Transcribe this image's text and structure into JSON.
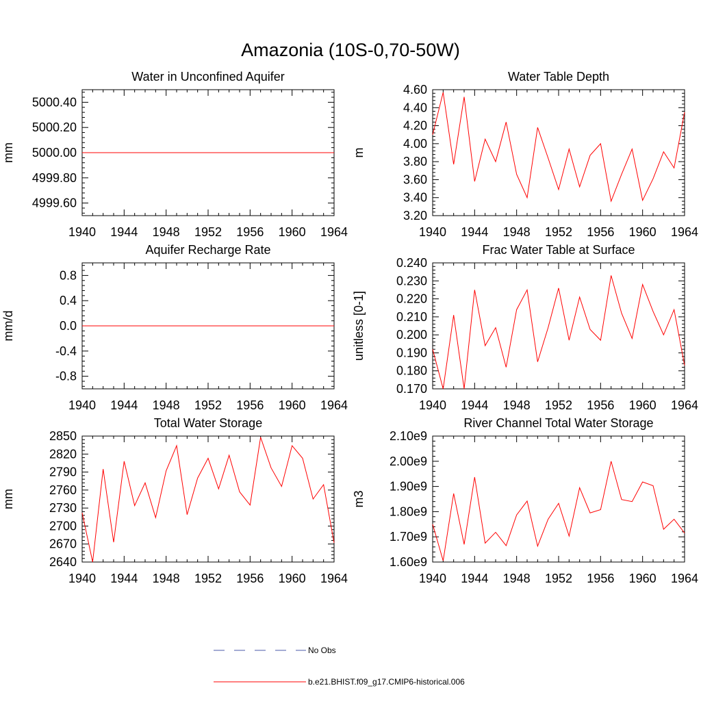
{
  "figure_title": "Amazonia (10S-0,70-50W)",
  "colors": {
    "model": "#ff0000",
    "obs": "#4a5aa8",
    "axis": "#000000"
  },
  "legend": [
    {
      "label": "No Obs",
      "style": "dashed",
      "color": "#4a5aa8"
    },
    {
      "label": "b.e21.BHIST.f09_g17.CMIP6-historical.006",
      "style": "solid",
      "color": "#ff0000"
    }
  ],
  "chart_data": [
    {
      "type": "line",
      "title": "Water in Unconfined Aquifer",
      "ylabel": "mm",
      "xlim": [
        1940,
        1964
      ],
      "ylim": [
        4999.5,
        5000.5
      ],
      "xticks": [
        "1940",
        "1944",
        "1948",
        "1952",
        "1956",
        "1960",
        "1964"
      ],
      "yticks": [
        {
          "v": 4999.6,
          "label": "4999.60"
        },
        {
          "v": 4999.8,
          "label": "4999.80"
        },
        {
          "v": 5000.0,
          "label": "5000.00"
        },
        {
          "v": 5000.2,
          "label": "5000.20"
        },
        {
          "v": 5000.4,
          "label": "5000.40"
        }
      ],
      "x": [
        1940,
        1941,
        1942,
        1943,
        1944,
        1945,
        1946,
        1947,
        1948,
        1949,
        1950,
        1951,
        1952,
        1953,
        1954,
        1955,
        1956,
        1957,
        1958,
        1959,
        1960,
        1961,
        1962,
        1963,
        1964
      ],
      "series": [
        {
          "name": "b.e21.BHIST.f09_g17.CMIP6-historical.006",
          "values": [
            5000,
            5000,
            5000,
            5000,
            5000,
            5000,
            5000,
            5000,
            5000,
            5000,
            5000,
            5000,
            5000,
            5000,
            5000,
            5000,
            5000,
            5000,
            5000,
            5000,
            5000,
            5000,
            5000,
            5000,
            5000
          ]
        }
      ]
    },
    {
      "type": "line",
      "title": "Water Table Depth",
      "ylabel": "m",
      "xlim": [
        1940,
        1964
      ],
      "ylim": [
        3.2,
        4.6
      ],
      "xticks": [
        "1940",
        "1944",
        "1948",
        "1952",
        "1956",
        "1960",
        "1964"
      ],
      "yticks": [
        {
          "v": 3.2,
          "label": "3.20"
        },
        {
          "v": 3.4,
          "label": "3.40"
        },
        {
          "v": 3.6,
          "label": "3.60"
        },
        {
          "v": 3.8,
          "label": "3.80"
        },
        {
          "v": 4.0,
          "label": "4.00"
        },
        {
          "v": 4.2,
          "label": "4.20"
        },
        {
          "v": 4.4,
          "label": "4.40"
        },
        {
          "v": 4.6,
          "label": "4.60"
        }
      ],
      "x": [
        1940,
        1941,
        1942,
        1943,
        1944,
        1945,
        1946,
        1947,
        1948,
        1949,
        1950,
        1951,
        1952,
        1953,
        1954,
        1955,
        1956,
        1957,
        1958,
        1959,
        1960,
        1961,
        1962,
        1963,
        1964
      ],
      "series": [
        {
          "name": "b.e21.BHIST.f09_g17.CMIP6-historical.006",
          "values": [
            4.1,
            4.57,
            3.77,
            4.52,
            3.58,
            4.05,
            3.8,
            4.24,
            3.66,
            3.4,
            4.18,
            3.84,
            3.49,
            3.94,
            3.52,
            3.87,
            4.0,
            3.36,
            3.66,
            3.94,
            3.37,
            3.61,
            3.91,
            3.73,
            4.35
          ]
        }
      ]
    },
    {
      "type": "line",
      "title": "Aquifer Recharge Rate",
      "ylabel": "mm/d",
      "xlim": [
        1940,
        1964
      ],
      "ylim": [
        -1.0,
        1.0
      ],
      "xticks": [
        "1940",
        "1944",
        "1948",
        "1952",
        "1956",
        "1960",
        "1964"
      ],
      "yticks": [
        {
          "v": -0.8,
          "label": "-0.8"
        },
        {
          "v": -0.4,
          "label": "-0.4"
        },
        {
          "v": 0.0,
          "label": "0.0"
        },
        {
          "v": 0.4,
          "label": "0.4"
        },
        {
          "v": 0.8,
          "label": "0.8"
        }
      ],
      "x": [
        1940,
        1941,
        1942,
        1943,
        1944,
        1945,
        1946,
        1947,
        1948,
        1949,
        1950,
        1951,
        1952,
        1953,
        1954,
        1955,
        1956,
        1957,
        1958,
        1959,
        1960,
        1961,
        1962,
        1963,
        1964
      ],
      "series": [
        {
          "name": "b.e21.BHIST.f09_g17.CMIP6-historical.006",
          "values": [
            0,
            0,
            0,
            0,
            0,
            0,
            0,
            0,
            0,
            0,
            0,
            0,
            0,
            0,
            0,
            0,
            0,
            0,
            0,
            0,
            0,
            0,
            0,
            0,
            0
          ]
        }
      ]
    },
    {
      "type": "line",
      "title": "Frac Water Table at Surface",
      "ylabel": "unitless [0-1]",
      "xlim": [
        1940,
        1964
      ],
      "ylim": [
        0.17,
        0.24
      ],
      "xticks": [
        "1940",
        "1944",
        "1948",
        "1952",
        "1956",
        "1960",
        "1964"
      ],
      "yticks": [
        {
          "v": 0.17,
          "label": "0.170"
        },
        {
          "v": 0.18,
          "label": "0.180"
        },
        {
          "v": 0.19,
          "label": "0.190"
        },
        {
          "v": 0.2,
          "label": "0.200"
        },
        {
          "v": 0.21,
          "label": "0.210"
        },
        {
          "v": 0.22,
          "label": "0.220"
        },
        {
          "v": 0.23,
          "label": "0.230"
        },
        {
          "v": 0.24,
          "label": "0.240"
        }
      ],
      "x": [
        1940,
        1941,
        1942,
        1943,
        1944,
        1945,
        1946,
        1947,
        1948,
        1949,
        1950,
        1951,
        1952,
        1953,
        1954,
        1955,
        1956,
        1957,
        1958,
        1959,
        1960,
        1961,
        1962,
        1963,
        1964
      ],
      "series": [
        {
          "name": "b.e21.BHIST.f09_g17.CMIP6-historical.006",
          "values": [
            0.192,
            0.17,
            0.211,
            0.17,
            0.225,
            0.194,
            0.204,
            0.182,
            0.214,
            0.225,
            0.185,
            0.204,
            0.226,
            0.197,
            0.221,
            0.203,
            0.197,
            0.233,
            0.212,
            0.198,
            0.228,
            0.213,
            0.2,
            0.214,
            0.183
          ]
        }
      ]
    },
    {
      "type": "line",
      "title": "Total Water Storage",
      "ylabel": "mm",
      "xlim": [
        1940,
        1964
      ],
      "ylim": [
        2640,
        2850
      ],
      "xticks": [
        "1940",
        "1944",
        "1948",
        "1952",
        "1956",
        "1960",
        "1964"
      ],
      "yticks": [
        {
          "v": 2640,
          "label": "2640"
        },
        {
          "v": 2670,
          "label": "2670"
        },
        {
          "v": 2700,
          "label": "2700"
        },
        {
          "v": 2730,
          "label": "2730"
        },
        {
          "v": 2760,
          "label": "2760"
        },
        {
          "v": 2790,
          "label": "2790"
        },
        {
          "v": 2820,
          "label": "2820"
        },
        {
          "v": 2850,
          "label": "2850"
        }
      ],
      "x": [
        1940,
        1941,
        1942,
        1943,
        1944,
        1945,
        1946,
        1947,
        1948,
        1949,
        1950,
        1951,
        1952,
        1953,
        1954,
        1955,
        1956,
        1957,
        1958,
        1959,
        1960,
        1961,
        1962,
        1963,
        1964
      ],
      "series": [
        {
          "name": "b.e21.BHIST.f09_g17.CMIP6-historical.006",
          "values": [
            2722,
            2640,
            2795,
            2673,
            2808,
            2734,
            2772,
            2714,
            2792,
            2834,
            2719,
            2780,
            2813,
            2762,
            2818,
            2757,
            2735,
            2848,
            2797,
            2766,
            2834,
            2813,
            2745,
            2769,
            2672
          ]
        }
      ]
    },
    {
      "type": "line",
      "title": "River Channel Total Water Storage",
      "ylabel": "m3",
      "xlim": [
        1940,
        1964
      ],
      "ylim": [
        1600000000,
        2100000000
      ],
      "xticks": [
        "1940",
        "1944",
        "1948",
        "1952",
        "1956",
        "1960",
        "1964"
      ],
      "yticks": [
        {
          "v": 1600000000,
          "label": "1.60e9"
        },
        {
          "v": 1700000000,
          "label": "1.70e9"
        },
        {
          "v": 1800000000,
          "label": "1.80e9"
        },
        {
          "v": 1900000000,
          "label": "1.90e9"
        },
        {
          "v": 2000000000,
          "label": "2.00e9"
        },
        {
          "v": 2100000000,
          "label": "2.10e9"
        }
      ],
      "x": [
        1940,
        1941,
        1942,
        1943,
        1944,
        1945,
        1946,
        1947,
        1948,
        1949,
        1950,
        1951,
        1952,
        1953,
        1954,
        1955,
        1956,
        1957,
        1958,
        1959,
        1960,
        1961,
        1962,
        1963,
        1964
      ],
      "series": [
        {
          "name": "b.e21.BHIST.f09_g17.CMIP6-historical.006",
          "values": [
            1750000000,
            1605000000,
            1872000000,
            1670000000,
            1937000000,
            1675000000,
            1718000000,
            1665000000,
            1787000000,
            1842000000,
            1663000000,
            1770000000,
            1833000000,
            1703000000,
            1895000000,
            1795000000,
            1808000000,
            2000000000,
            1848000000,
            1840000000,
            1918000000,
            1903000000,
            1730000000,
            1770000000,
            1715000000
          ]
        }
      ]
    }
  ]
}
